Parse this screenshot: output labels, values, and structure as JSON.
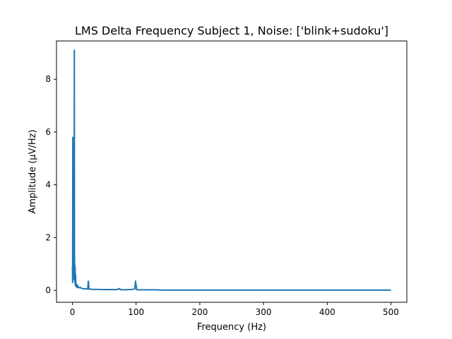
{
  "chart_data": {
    "type": "line",
    "title": "LMS Delta Frequency Subject 1, Noise: ['blink+sudoku']",
    "xlabel": "Frequency (Hz)",
    "ylabel": "Amplitude (μV/Hz)",
    "xlim": [
      -25,
      525
    ],
    "ylim": [
      -0.45,
      9.45
    ],
    "x_ticks": [
      0,
      100,
      200,
      300,
      400,
      500
    ],
    "x_tick_labels": [
      "0",
      "100",
      "200",
      "300",
      "400",
      "500"
    ],
    "y_ticks": [
      0,
      2,
      4,
      6,
      8
    ],
    "y_tick_labels": [
      "0",
      "2",
      "4",
      "6",
      "8"
    ],
    "grid": false,
    "legend": "none",
    "series": [
      {
        "color": "#1f77b4",
        "x": [
          0,
          0.3,
          0.6,
          0.9,
          1.2,
          1.5,
          1.8,
          2.1,
          2.4,
          2.7,
          3.0,
          3.3,
          3.6,
          3.9,
          4.2,
          4.5,
          5,
          5.5,
          6,
          7,
          8,
          9,
          10,
          12,
          14,
          16,
          18,
          20,
          22,
          24,
          25,
          26,
          28,
          30,
          35,
          40,
          45,
          50,
          60,
          70,
          74,
          75,
          76,
          80,
          90,
          98,
          99,
          100,
          101,
          102,
          110,
          120,
          130,
          140,
          150,
          175,
          200,
          250,
          300,
          350,
          400,
          450,
          500
        ],
        "y": [
          0.9,
          0.3,
          5.8,
          0.5,
          5.6,
          1.2,
          2.6,
          0.6,
          1.3,
          0.4,
          9.1,
          0.6,
          1.0,
          0.3,
          0.9,
          0.2,
          0.6,
          0.15,
          0.25,
          0.12,
          0.2,
          0.1,
          0.1,
          0.12,
          0.08,
          0.07,
          0.06,
          0.06,
          0.06,
          0.05,
          0.35,
          0.05,
          0.05,
          0.04,
          0.04,
          0.04,
          0.03,
          0.03,
          0.03,
          0.03,
          0.07,
          0.03,
          0.03,
          0.02,
          0.03,
          0.05,
          0.35,
          0.2,
          0.03,
          0.02,
          0.02,
          0.02,
          0.02,
          0.01,
          0.01,
          0.01,
          0.01,
          0.01,
          0.01,
          0.01,
          0.01,
          0.01,
          0.01
        ]
      }
    ]
  }
}
